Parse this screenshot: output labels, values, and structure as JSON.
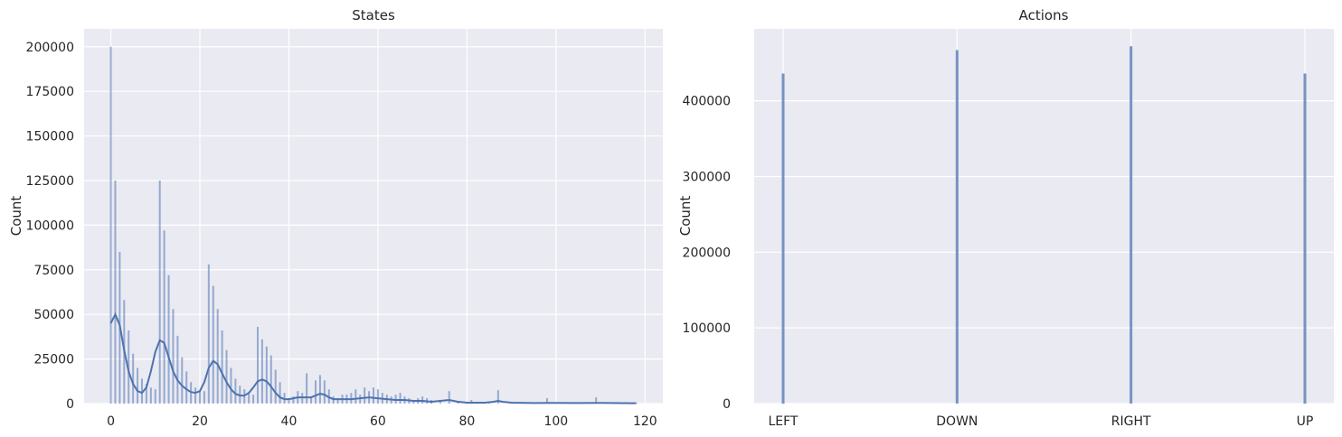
{
  "chart_data": [
    {
      "type": "histogram",
      "title": "States",
      "xlabel": "",
      "ylabel": "Count",
      "xlim": [
        -6,
        124
      ],
      "ylim": [
        0,
        210000
      ],
      "xticks": [
        0,
        20,
        40,
        60,
        80,
        100,
        120
      ],
      "yticks": [
        0,
        25000,
        50000,
        75000,
        100000,
        125000,
        150000,
        175000,
        200000
      ],
      "grid": true,
      "bars": [
        {
          "x": 0,
          "value": 200000
        },
        {
          "x": 1,
          "value": 125000
        },
        {
          "x": 2,
          "value": 85000
        },
        {
          "x": 3,
          "value": 58000
        },
        {
          "x": 4,
          "value": 41000
        },
        {
          "x": 5,
          "value": 28000
        },
        {
          "x": 6,
          "value": 20000
        },
        {
          "x": 7,
          "value": 14000
        },
        {
          "x": 8,
          "value": 11000
        },
        {
          "x": 9,
          "value": 9000
        },
        {
          "x": 10,
          "value": 8000
        },
        {
          "x": 11,
          "value": 125000
        },
        {
          "x": 12,
          "value": 97000
        },
        {
          "x": 13,
          "value": 72000
        },
        {
          "x": 14,
          "value": 53000
        },
        {
          "x": 15,
          "value": 38000
        },
        {
          "x": 16,
          "value": 26000
        },
        {
          "x": 17,
          "value": 18000
        },
        {
          "x": 18,
          "value": 12000
        },
        {
          "x": 19,
          "value": 9000
        },
        {
          "x": 20,
          "value": 7000
        },
        {
          "x": 21,
          "value": 7000
        },
        {
          "x": 22,
          "value": 78000
        },
        {
          "x": 23,
          "value": 66000
        },
        {
          "x": 24,
          "value": 53000
        },
        {
          "x": 25,
          "value": 41000
        },
        {
          "x": 26,
          "value": 30000
        },
        {
          "x": 27,
          "value": 20000
        },
        {
          "x": 28,
          "value": 14000
        },
        {
          "x": 29,
          "value": 10000
        },
        {
          "x": 30,
          "value": 8000
        },
        {
          "x": 31,
          "value": 6000
        },
        {
          "x": 32,
          "value": 5000
        },
        {
          "x": 33,
          "value": 43000
        },
        {
          "x": 34,
          "value": 36000
        },
        {
          "x": 35,
          "value": 32000
        },
        {
          "x": 36,
          "value": 27000
        },
        {
          "x": 37,
          "value": 19000
        },
        {
          "x": 38,
          "value": 12000
        },
        {
          "x": 39,
          "value": 6000
        },
        {
          "x": 40,
          "value": 3000
        },
        {
          "x": 41,
          "value": 4000
        },
        {
          "x": 42,
          "value": 7000
        },
        {
          "x": 43,
          "value": 6000
        },
        {
          "x": 44,
          "value": 17000
        },
        {
          "x": 45,
          "value": 4000
        },
        {
          "x": 46,
          "value": 13000
        },
        {
          "x": 47,
          "value": 16000
        },
        {
          "x": 48,
          "value": 13000
        },
        {
          "x": 49,
          "value": 8000
        },
        {
          "x": 50,
          "value": 4000
        },
        {
          "x": 51,
          "value": 3000
        },
        {
          "x": 52,
          "value": 5000
        },
        {
          "x": 53,
          "value": 5000
        },
        {
          "x": 54,
          "value": 6000
        },
        {
          "x": 55,
          "value": 8000
        },
        {
          "x": 56,
          "value": 5000
        },
        {
          "x": 57,
          "value": 9000
        },
        {
          "x": 58,
          "value": 7000
        },
        {
          "x": 59,
          "value": 9000
        },
        {
          "x": 60,
          "value": 8000
        },
        {
          "x": 61,
          "value": 6000
        },
        {
          "x": 62,
          "value": 5000
        },
        {
          "x": 63,
          "value": 4000
        },
        {
          "x": 64,
          "value": 5000
        },
        {
          "x": 65,
          "value": 6000
        },
        {
          "x": 66,
          "value": 4000
        },
        {
          "x": 67,
          "value": 3000
        },
        {
          "x": 68,
          "value": 2000
        },
        {
          "x": 69,
          "value": 3000
        },
        {
          "x": 70,
          "value": 4000
        },
        {
          "x": 71,
          "value": 3000
        },
        {
          "x": 72,
          "value": 2000
        },
        {
          "x": 74,
          "value": 1500
        },
        {
          "x": 76,
          "value": 7000
        },
        {
          "x": 78,
          "value": 1500
        },
        {
          "x": 80,
          "value": 1000
        },
        {
          "x": 81,
          "value": 2000
        },
        {
          "x": 82,
          "value": 1000
        },
        {
          "x": 85,
          "value": 1000
        },
        {
          "x": 87,
          "value": 7500
        },
        {
          "x": 90,
          "value": 1000
        },
        {
          "x": 93,
          "value": 800
        },
        {
          "x": 98,
          "value": 3000
        },
        {
          "x": 100,
          "value": 800
        },
        {
          "x": 105,
          "value": 600
        },
        {
          "x": 109,
          "value": 3500
        },
        {
          "x": 113,
          "value": 500
        },
        {
          "x": 118,
          "value": 500
        }
      ],
      "kde": [
        [
          0,
          45000
        ],
        [
          1,
          50000
        ],
        [
          2,
          44000
        ],
        [
          3,
          30000
        ],
        [
          4,
          18000
        ],
        [
          5,
          11000
        ],
        [
          6,
          7000
        ],
        [
          7,
          6000
        ],
        [
          8,
          9000
        ],
        [
          9,
          18000
        ],
        [
          10,
          29000
        ],
        [
          11,
          35500
        ],
        [
          12,
          34000
        ],
        [
          13,
          26000
        ],
        [
          14,
          18000
        ],
        [
          15,
          13000
        ],
        [
          16,
          10000
        ],
        [
          17,
          8000
        ],
        [
          18,
          6500
        ],
        [
          19,
          6000
        ],
        [
          20,
          7000
        ],
        [
          21,
          12000
        ],
        [
          22,
          20000
        ],
        [
          23,
          24000
        ],
        [
          24,
          22000
        ],
        [
          25,
          17000
        ],
        [
          26,
          12000
        ],
        [
          27,
          8000
        ],
        [
          28,
          5500
        ],
        [
          29,
          4500
        ],
        [
          30,
          4500
        ],
        [
          31,
          6000
        ],
        [
          32,
          9000
        ],
        [
          33,
          12500
        ],
        [
          34,
          13500
        ],
        [
          35,
          12500
        ],
        [
          36,
          9500
        ],
        [
          37,
          6000
        ],
        [
          38,
          3500
        ],
        [
          39,
          2500
        ],
        [
          40,
          2500
        ],
        [
          41,
          3000
        ],
        [
          42,
          3500
        ],
        [
          43,
          3500
        ],
        [
          44,
          3500
        ],
        [
          45,
          3500
        ],
        [
          46,
          4500
        ],
        [
          47,
          5500
        ],
        [
          48,
          5000
        ],
        [
          49,
          3500
        ],
        [
          50,
          2500
        ],
        [
          52,
          2500
        ],
        [
          54,
          2500
        ],
        [
          56,
          3000
        ],
        [
          58,
          3500
        ],
        [
          60,
          3000
        ],
        [
          62,
          2500
        ],
        [
          64,
          2000
        ],
        [
          66,
          2000
        ],
        [
          68,
          1500
        ],
        [
          70,
          1500
        ],
        [
          72,
          1000
        ],
        [
          74,
          1500
        ],
        [
          76,
          2000
        ],
        [
          78,
          1000
        ],
        [
          80,
          500
        ],
        [
          82,
          500
        ],
        [
          84,
          500
        ],
        [
          86,
          1000
        ],
        [
          87,
          1500
        ],
        [
          88,
          1000
        ],
        [
          90,
          500
        ],
        [
          95,
          300
        ],
        [
          100,
          400
        ],
        [
          105,
          300
        ],
        [
          110,
          400
        ],
        [
          118,
          200
        ]
      ]
    },
    {
      "type": "histogram",
      "title": "Actions",
      "xlabel": "",
      "ylabel": "Count",
      "categories": [
        "LEFT",
        "DOWN",
        "RIGHT",
        "UP"
      ],
      "values": [
        436000,
        467000,
        472000,
        436000
      ],
      "ylim": [
        0,
        495000
      ],
      "yticks": [
        0,
        100000,
        200000,
        300000,
        400000
      ],
      "grid": true
    }
  ],
  "colors": {
    "axes_bg": "#eaeaf2",
    "grid": "#ffffff",
    "bar_fill": "#4c72b0",
    "kde_line": "#4c72b0",
    "text": "#262626"
  }
}
